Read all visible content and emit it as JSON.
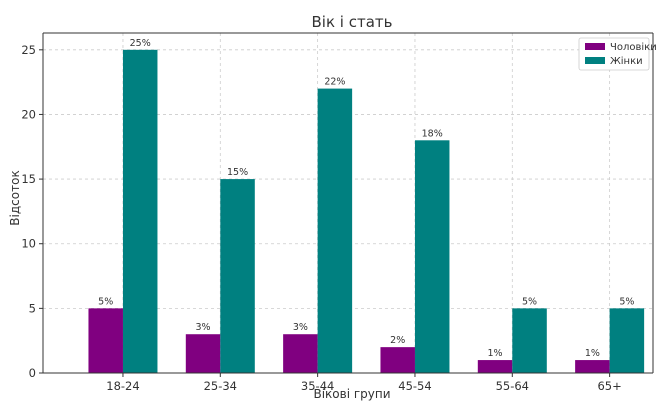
{
  "chart_data": {
    "type": "bar",
    "title": "Вік і стать",
    "xlabel": "Вікові групи",
    "ylabel": "Відсоток",
    "categories": [
      "18-24",
      "25-34",
      "35-44",
      "45-54",
      "55-64",
      "65+"
    ],
    "series": [
      {
        "name": "Чоловіки",
        "color": "#800080",
        "values": [
          5,
          3,
          3,
          2,
          1,
          1
        ],
        "labels": [
          "5%",
          "3%",
          "3%",
          "2%",
          "1%",
          "1%"
        ]
      },
      {
        "name": "Жінки",
        "color": "#008080",
        "values": [
          25,
          15,
          22,
          18,
          5,
          5
        ],
        "labels": [
          "25%",
          "15%",
          "22%",
          "18%",
          "5%",
          "5%"
        ]
      }
    ],
    "ylim": [
      0,
      26.3
    ],
    "yticks": [
      "0",
      "5",
      "10",
      "15",
      "20",
      "25"
    ],
    "grid": true,
    "legend_position": "top-right"
  }
}
